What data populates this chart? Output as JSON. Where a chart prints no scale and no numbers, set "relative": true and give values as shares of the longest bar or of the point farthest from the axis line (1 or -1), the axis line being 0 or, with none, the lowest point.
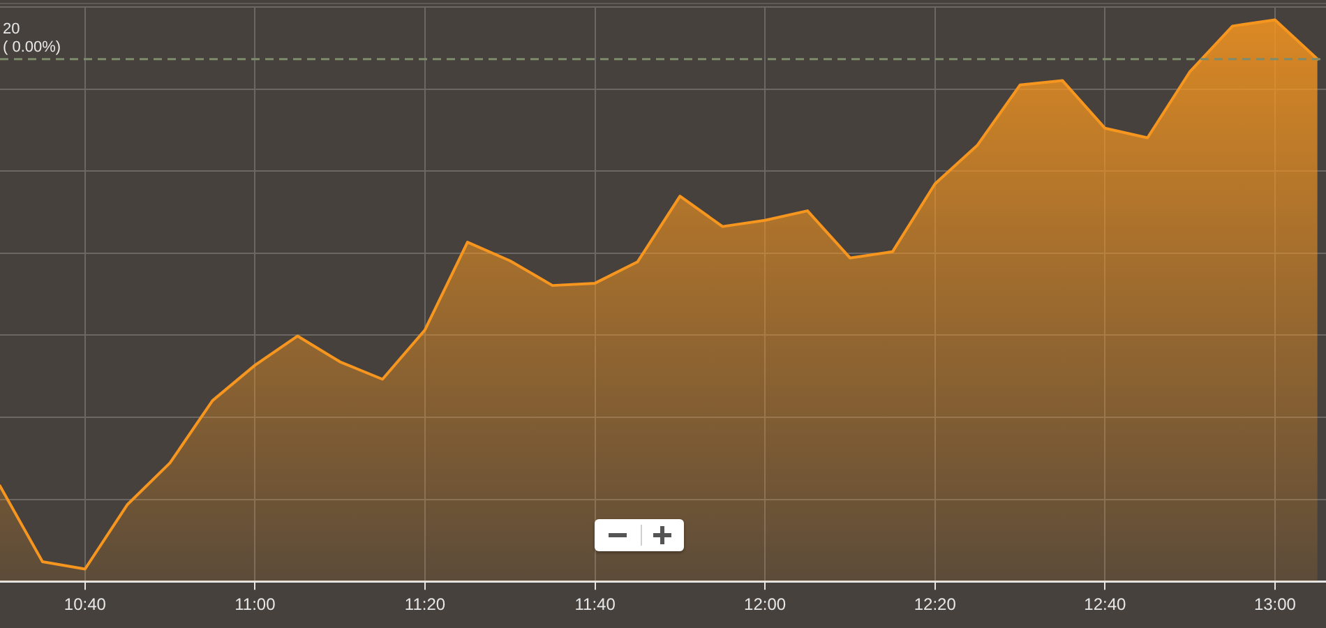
{
  "chart_data": {
    "type": "area",
    "relative": true,
    "color": "#f7961f",
    "x": [
      10.5,
      10.5833,
      10.6667,
      10.75,
      10.8333,
      10.9167,
      11,
      11.0833,
      11.1667,
      11.25,
      11.3333,
      11.4167,
      11.5,
      11.5833,
      11.6667,
      11.75,
      11.8333,
      11.9167,
      12,
      12.0833,
      12.1667,
      12.25,
      12.3333,
      12.4167,
      12.5,
      12.5833,
      12.6667,
      12.75,
      12.8333,
      12.9167,
      13,
      13.0833
    ],
    "values": [
      0.17,
      0.035,
      0.022,
      0.137,
      0.211,
      0.322,
      0.385,
      0.437,
      0.391,
      0.36,
      0.448,
      0.604,
      0.571,
      0.527,
      0.531,
      0.569,
      0.686,
      0.632,
      0.643,
      0.66,
      0.576,
      0.587,
      0.708,
      0.777,
      0.884,
      0.892,
      0.807,
      0.79,
      0.908,
      0.989,
      1,
      0.93
    ],
    "xlim": [
      10.5,
      13.1
    ],
    "xticks": [
      {
        "value": 10.6667,
        "label": "10:40"
      },
      {
        "value": 11,
        "label": "11:00"
      },
      {
        "value": 11.3333,
        "label": "11:20"
      },
      {
        "value": 11.6667,
        "label": "11:40"
      },
      {
        "value": 12,
        "label": "12:00"
      },
      {
        "value": 12.3333,
        "label": "12:20"
      },
      {
        "value": 12.6667,
        "label": "12:40"
      },
      {
        "value": 13,
        "label": "13:00"
      }
    ],
    "grid": true,
    "ref_lines": [
      {
        "axis": "y",
        "value": 0.93,
        "color": "#7e8b6c",
        "line_style": "dashed"
      }
    ],
    "annotations": [
      "20",
      "( 0.00%)"
    ]
  }
}
